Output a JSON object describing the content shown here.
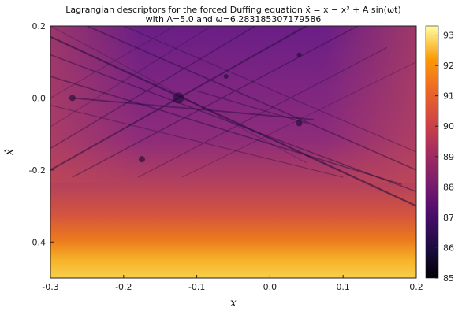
{
  "chart_data": {
    "type": "heatmap",
    "title": "Lagrangian descriptors for the forced Duffing equation ẍ = x − x³ + A sin(ωt)",
    "subtitle": "with A=5.0 and ω=6.283185307179586",
    "xlabel": "x",
    "ylabel": "ẋ",
    "xlim": [
      -0.3,
      0.2
    ],
    "ylim": [
      -0.5,
      0.2
    ],
    "x_ticks": [
      -0.3,
      -0.2,
      -0.1,
      0.0,
      0.1,
      0.2
    ],
    "x_tick_labels": [
      "-0.3",
      "-0.2",
      "-0.1",
      "0.0",
      "0.1",
      "0.2"
    ],
    "y_ticks": [
      0.2,
      0.0,
      -0.2,
      -0.4
    ],
    "y_tick_labels": [
      "0.2",
      "0.0",
      "-0.2",
      "-0.4"
    ],
    "colorbar": {
      "range": [
        85,
        93.3
      ],
      "ticks": [
        85,
        86,
        87,
        88,
        89,
        90,
        91,
        92,
        93
      ],
      "tick_labels": [
        "85",
        "86",
        "87",
        "88",
        "89",
        "90",
        "91",
        "92",
        "93"
      ],
      "colormap": "inferno"
    },
    "grid": false,
    "legend": "none"
  }
}
